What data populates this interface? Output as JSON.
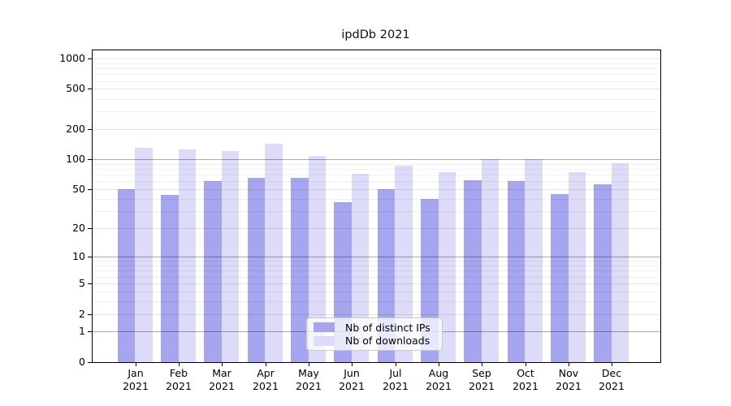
{
  "chart_data": {
    "type": "bar",
    "title": "ipdDb 2021",
    "year_label": "2021",
    "categories": [
      "Jan",
      "Feb",
      "Mar",
      "Apr",
      "May",
      "Jun",
      "Jul",
      "Aug",
      "Sep",
      "Oct",
      "Nov",
      "Dec"
    ],
    "series": [
      {
        "name": "Nb of distinct IPs",
        "color": "#a5a5f0",
        "values": [
          50,
          44,
          60,
          65,
          65,
          37,
          50,
          40,
          62,
          61,
          45,
          56
        ]
      },
      {
        "name": "Nb of downloads",
        "color": "#dcdcf8",
        "values": [
          130,
          125,
          120,
          143,
          108,
          72,
          87,
          75,
          101,
          100,
          74,
          92
        ]
      }
    ],
    "y_axis": {
      "scale": "log10(value+1)",
      "range": [
        0,
        1000
      ],
      "tick_labels": [
        "1000",
        "500",
        "200",
        "100",
        "50",
        "20",
        "10",
        "5",
        "2",
        "1",
        "0"
      ],
      "tick_values": [
        1000,
        500,
        200,
        100,
        50,
        20,
        10,
        5,
        2,
        1,
        0
      ],
      "major_grid_values": [
        100,
        10,
        1
      ],
      "light_grid_values": [
        1000,
        500,
        200,
        50,
        20,
        5,
        2
      ],
      "minor_grid_values": [
        900,
        800,
        700,
        600,
        400,
        300,
        90,
        80,
        70,
        60,
        40,
        30,
        9,
        8,
        7,
        6,
        4,
        3
      ]
    },
    "grid": true,
    "legend_position": "bottom-center"
  }
}
